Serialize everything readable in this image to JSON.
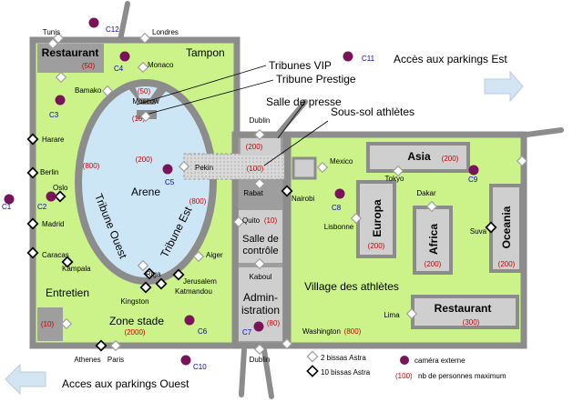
{
  "colors": {
    "zone": "#ccf28a",
    "arena": "#cde6f5",
    "wall": "#8c8c8c",
    "box": "#9e9e9e",
    "box_light": "#cfcfcf",
    "red": "#cc0000",
    "blue": "#0000cc",
    "camera": "#7a1458",
    "arrow": "#d3e4f2"
  },
  "labels": {
    "parking_est": "Accès aux parkings Est",
    "parking_ouest": "Acces aux parkings Ouest",
    "tampon": "Tampon",
    "arene": "Arene",
    "tribune_ouest": "Tribune Ouest",
    "tribune_est": "Tribune Est",
    "zone_stade": "Zone stade",
    "village": "Village des athlètes",
    "tribunes_vip": "Tribunes VIP",
    "tribune_prestige": "Tribune Prestige",
    "salle_presse": "Salle de presse",
    "sous_sol": "Sous-sol athlètes",
    "pekin": "Pekin",
    "entretien": "Entretien",
    "salle_controle_1": "Salle de",
    "salle_controle_2": "contrôle",
    "admin_1": "Admin-",
    "admin_2": "istration"
  },
  "capacities": {
    "restaurant_nw": "(50)",
    "vip": "(50)",
    "prestige": "(10)",
    "arena": "(200)",
    "tribune_ouest": "(800)",
    "tribune_est": "(800)",
    "zone_stade": "(2000)",
    "entretien": "(10)",
    "presse": "(200)",
    "sous_sol": "(100)",
    "controle": "(10)",
    "admin": "(80)",
    "village": "(800)",
    "asia": "(200)",
    "europa": "(200)",
    "africa": "(200)",
    "oceania": "(200)",
    "restaurant_se": "(300)"
  },
  "buildings": {
    "restaurant_nw": "Restaurant",
    "asia": "Asia",
    "europa": "Europa",
    "africa": "Africa",
    "oceania": "Oceania",
    "restaurant_se": "Restaurant"
  },
  "gates": {
    "tunis": "Tunis",
    "londres": "Londres",
    "monaco": "Monaco",
    "bamako": "Bamako",
    "moscow": "Moscow",
    "harare": "Harare",
    "berlin": "Berlin",
    "oslo": "Oslo",
    "madrid": "Madrid",
    "caracas": "Caracas",
    "kampala": "Kampala",
    "riga": "Riga",
    "jerusalem": "Jerusalem",
    "katmandou": "Katmandou",
    "kingston": "Kingston",
    "aiger": "Aiger",
    "dublin_n": "Dublin",
    "mexico": "Mexico",
    "rabat": "Rabat",
    "nairobi": "Nairobi",
    "quito": "Quito",
    "kaboul": "Kaboul",
    "tokyo": "Tokyo",
    "dakar": "Dakar",
    "lisbonne": "Lisbonne",
    "suva": "Suva",
    "lima": "Lima",
    "washington": "Washington",
    "athenes": "Athenes",
    "paris": "Paris",
    "dublin_s": "Dublin"
  },
  "cameras": {
    "c1": "C1",
    "c2": "C2",
    "c3": "C3",
    "c4": "C4",
    "c5": "C5",
    "c6": "C6",
    "c7": "C7",
    "c8": "C8",
    "c9": "C9",
    "c10": "C10",
    "c11": "C11",
    "c12": "C12"
  },
  "legend": {
    "bissas2": "2 bissas Astra",
    "bissas10": "10 bissas Astra",
    "camera": "caméra externe",
    "cap_sample": "(100)",
    "cap_text": "nb de personnes maximum"
  }
}
